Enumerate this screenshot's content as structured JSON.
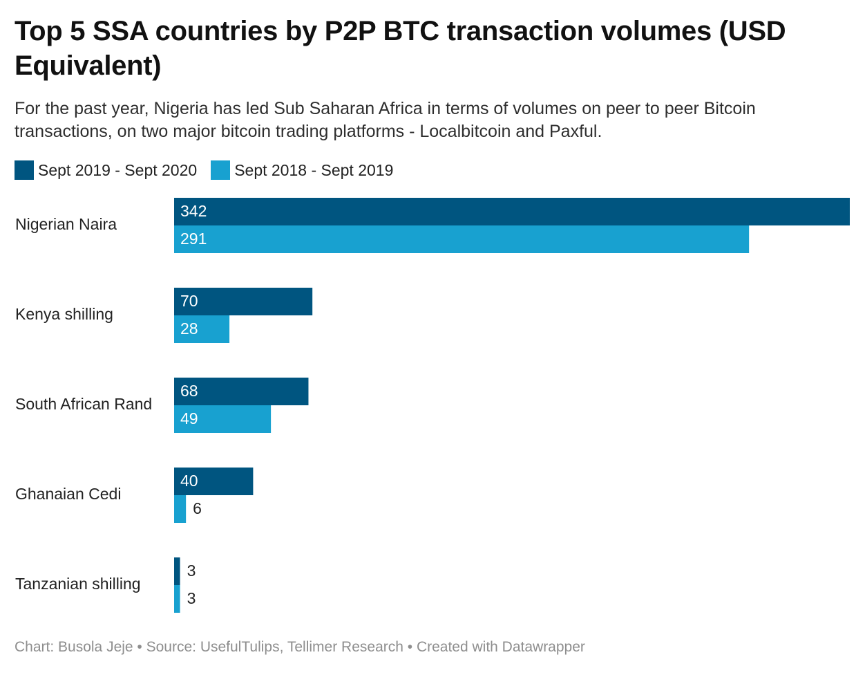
{
  "title": "Top 5 SSA countries by P2P BTC transaction volumes (USD Equivalent)",
  "subtitle": "For the past year, Nigeria has led Sub Saharan Africa in terms of volumes on peer to peer Bitcoin transactions, on two major bitcoin trading platforms - Localbitcoin and Paxful.",
  "footer": "Chart: Busola Jeje • Source: UsefulTulips, Tellimer Research • Created with Datawrapper",
  "colors": {
    "series1": "#005580",
    "series2": "#18a1d0"
  },
  "chart_data": {
    "type": "bar",
    "orientation": "horizontal",
    "categories": [
      "Nigerian Naira",
      "Kenya shilling",
      "South African Rand",
      "Ghanaian Cedi",
      "Tanzanian shilling"
    ],
    "series": [
      {
        "name": "Sept 2019 - Sept 2020",
        "values": [
          342,
          70,
          68,
          40,
          3
        ]
      },
      {
        "name": "Sept 2018 - Sept 2019",
        "values": [
          291,
          28,
          49,
          6,
          3
        ]
      }
    ],
    "xlim": [
      0,
      342
    ],
    "grid": false,
    "legend_position": "top-left",
    "data_labels": true
  }
}
